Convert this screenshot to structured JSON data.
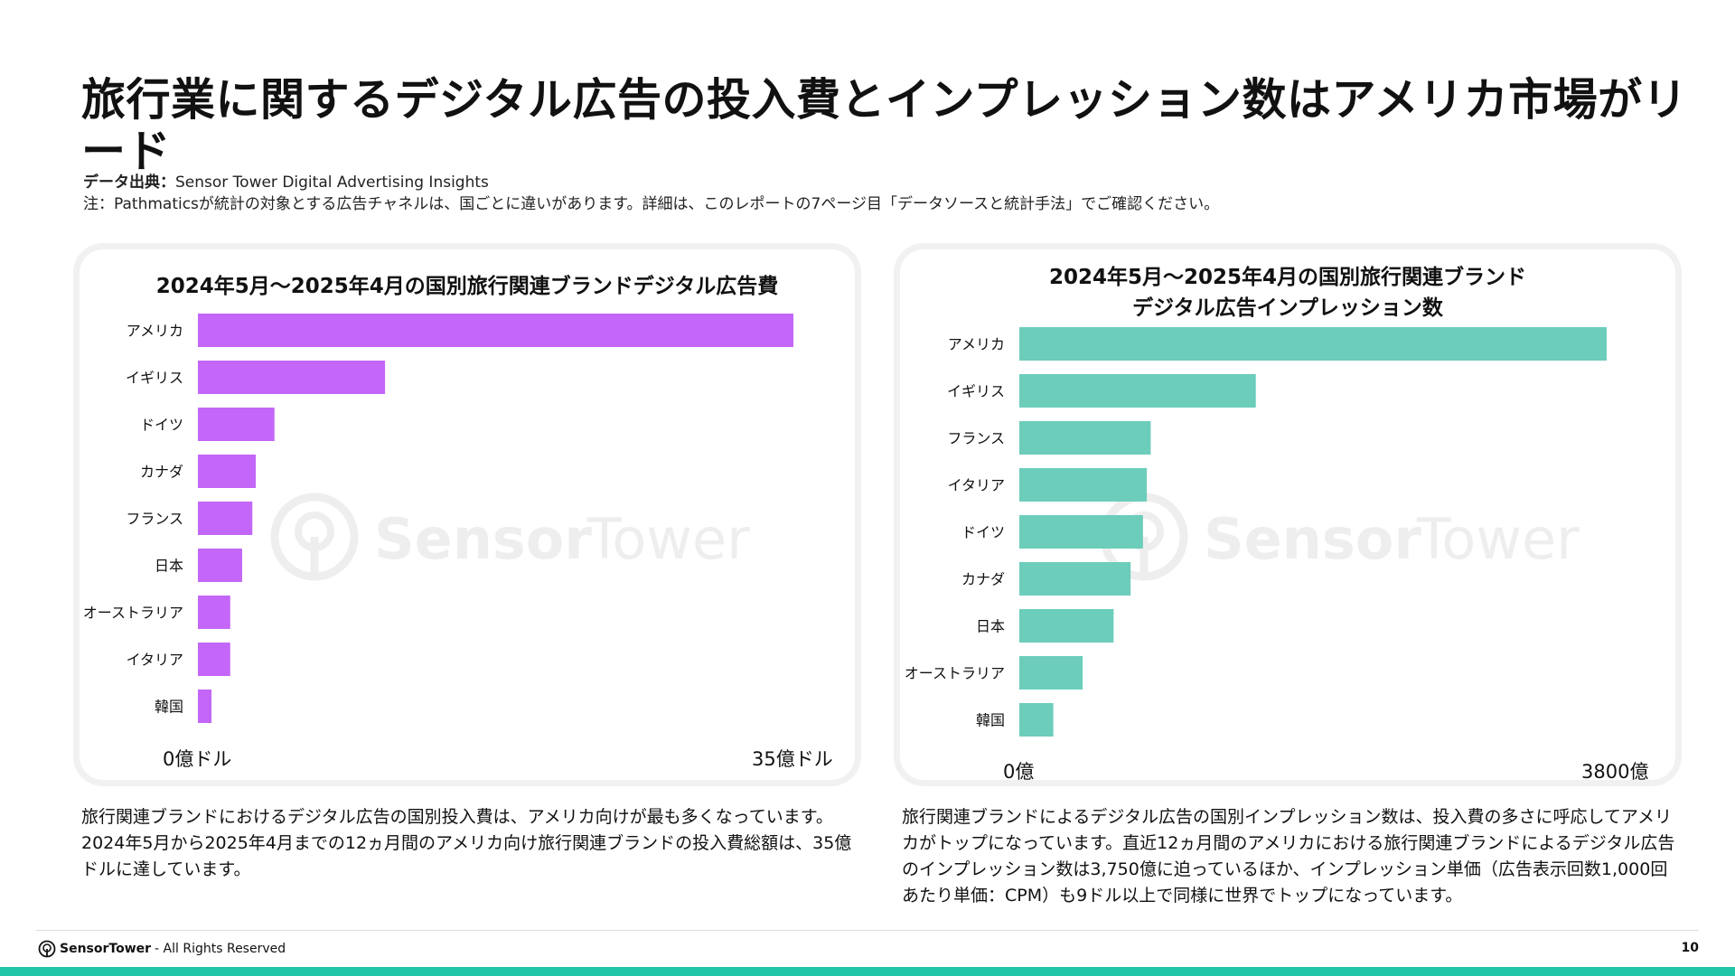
{
  "page": {
    "title": "旅行業に関するデジタル広告の投入費とインプレッション数はアメリカ市場がリード",
    "source_label": "データ出典：",
    "source_value": "Sensor Tower Digital Advertising Insights",
    "note": "注：Pathmaticsが統計の対象とする広告チャネルは、国ごとに違いがあります。詳細は、このレポートの7ページ目「データソースと統計手法」でご確認ください。",
    "footer_brand": "SensorTower",
    "footer_rights": "- All Rights Reserved",
    "page_number": "10",
    "watermark_a": "Sensor",
    "watermark_b": "Tower"
  },
  "colors": {
    "spend": "#c466f7",
    "impressions": "#6ccdbb",
    "accent": "#21c5a8"
  },
  "chart_data": [
    {
      "type": "bar",
      "orientation": "horizontal",
      "title": "2024年5月～2025年4月の国別旅行関連ブランドデジタル広告費",
      "categories": [
        "アメリカ",
        "イギリス",
        "ドイツ",
        "カナダ",
        "フランス",
        "日本",
        "オーストラリア",
        "イタリア",
        "韓国"
      ],
      "values": [
        35.0,
        11.0,
        4.5,
        3.4,
        3.2,
        2.6,
        1.9,
        1.9,
        0.8
      ],
      "unit": "億ドル",
      "xlim": [
        0,
        35
      ],
      "xmin_label": "0億ドル",
      "xmax_label": "35億ドル"
    },
    {
      "type": "bar",
      "orientation": "horizontal",
      "title_lines": [
        "2024年5月～2025年4月の国別旅行関連ブランド",
        "デジタル広告インプレッション数"
      ],
      "categories": [
        "アメリカ",
        "イギリス",
        "フランス",
        "イタリア",
        "ドイツ",
        "カナダ",
        "日本",
        "オーストラリア",
        "韓国"
      ],
      "values": [
        3800,
        1530,
        850,
        825,
        800,
        720,
        610,
        410,
        220
      ],
      "unit": "億",
      "xlim": [
        0,
        3800
      ],
      "xmin_label": "0億",
      "xmax_label": "3800億"
    }
  ],
  "descriptions": {
    "left": "旅行関連ブランドにおけるデジタル広告の国別投入費は、アメリカ向けが最も多くなっています。2024年5月から2025年4月までの12ヵ月間のアメリカ向け旅行関連ブランドの投入費総額は、35億ドルに達しています。",
    "right": "旅行関連ブランドによるデジタル広告の国別インプレッション数は、投入費の多さに呼応してアメリカがトップになっています。直近12ヵ月間のアメリカにおける旅行関連ブランドによるデジタル広告のインプレッション数は3,750億に迫っているほか、インプレッション単価（広告表示回数1,000回あたり単価：CPM）も9ドル以上で同様に世界でトップになっています。"
  }
}
